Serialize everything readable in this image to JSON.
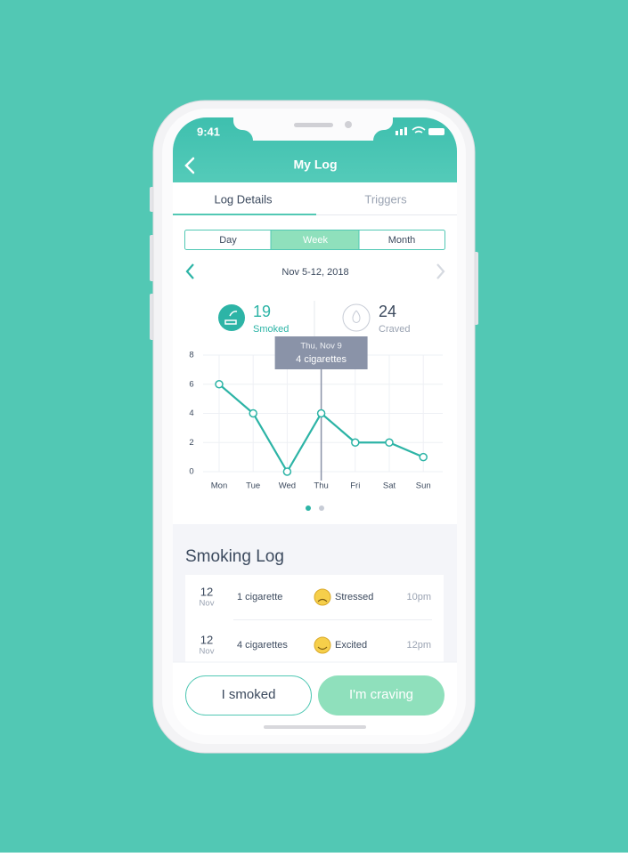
{
  "status_bar": {
    "time": "9:41"
  },
  "header": {
    "title": "My Log"
  },
  "tabs": [
    "Log Details",
    "Triggers"
  ],
  "periods": [
    "Day",
    "Week",
    "Month"
  ],
  "date_range": "Nov 5-12, 2018",
  "stats": [
    {
      "value": 19,
      "label": "Smoked"
    },
    {
      "value": 24,
      "label": "Craved"
    }
  ],
  "chart": {
    "type": "line",
    "categories": [
      "Mon",
      "Tue",
      "Wed",
      "Thu",
      "Fri",
      "Sat",
      "Sun"
    ],
    "values": [
      6,
      4,
      0,
      4,
      2,
      2,
      1
    ],
    "ylim": [
      0,
      8
    ],
    "yticks": [
      0,
      2,
      4,
      6,
      8
    ],
    "grid": true,
    "color": "#2db4a6",
    "tooltip": {
      "title": "Thu, Nov 9",
      "text": "4 cigarettes"
    }
  },
  "log": {
    "title": "Smoking Log",
    "entries": [
      {
        "day": "12",
        "month": "Nov",
        "amount": "1 cigarette",
        "mood": "Stressed",
        "time": "10pm"
      },
      {
        "day": "12",
        "month": "Nov",
        "amount": "4 cigarettes",
        "mood": "Excited",
        "time": "12pm"
      }
    ]
  },
  "buttons": [
    "I smoked",
    "I'm craving"
  ]
}
